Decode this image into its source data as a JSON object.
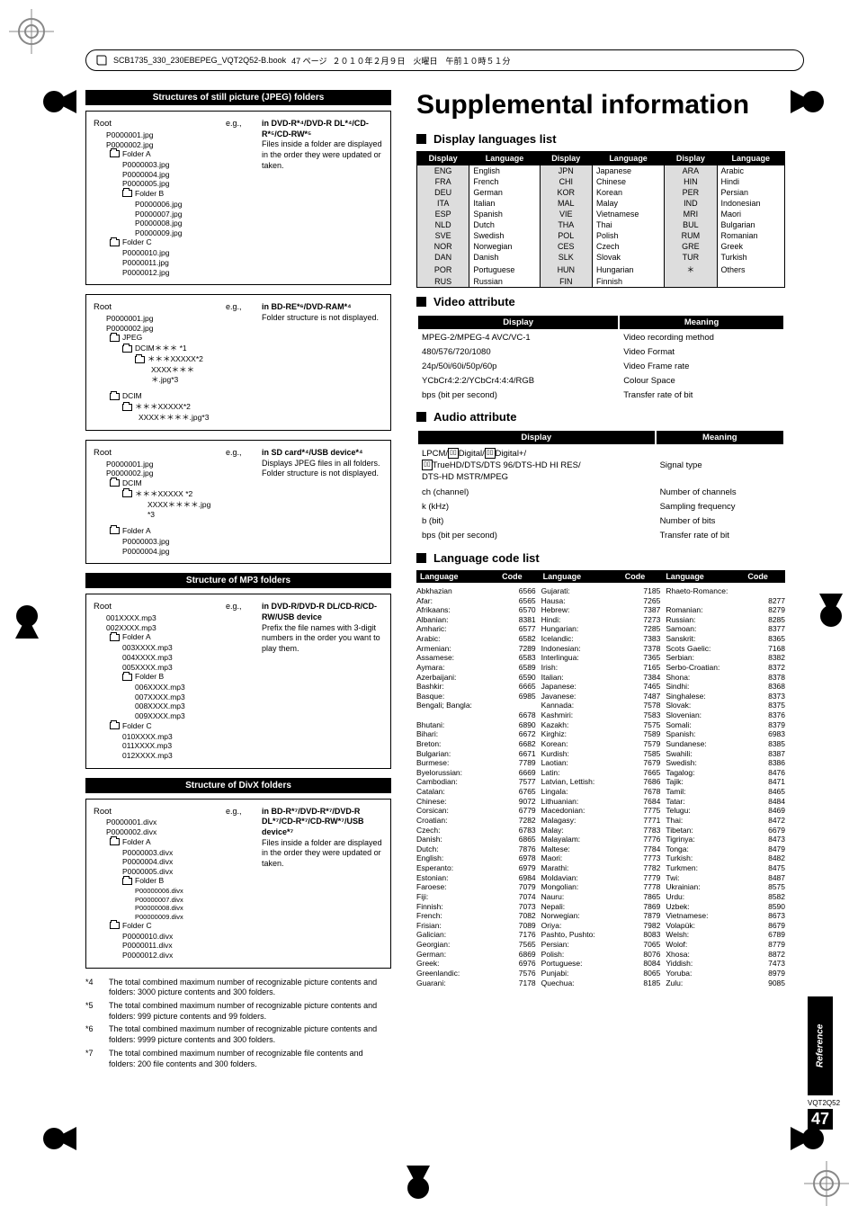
{
  "doc_header": {
    "filename": "SCB1735_330_230EBEPEG_VQT2Q52-B.book",
    "page_label": "47 ページ",
    "date": "２０１０年２月９日　火曜日　午前１０時５１分"
  },
  "left": {
    "jpeg_title": "Structures of still picture (JPEG) folders",
    "panel1": {
      "root": "Root",
      "eg": "e.g.,",
      "files1": [
        "P0000001.jpg",
        "P0000002.jpg"
      ],
      "folderA": "Folder A",
      "filesA": [
        "P0000003.jpg",
        "P0000004.jpg",
        "P0000005.jpg"
      ],
      "folderB": "Folder B",
      "filesB": [
        "P0000006.jpg",
        "P0000007.jpg",
        "P0000008.jpg",
        "P0000009.jpg"
      ],
      "folderC": "Folder C",
      "filesC": [
        "P0000010.jpg",
        "P0000011.jpg",
        "P0000012.jpg"
      ],
      "note_title": "in DVD-R*⁴/DVD-R DL*⁴/CD-R*⁵/CD-RW*⁵",
      "note_body": "Files inside a folder are displayed in the order they were updated or taken."
    },
    "panel2": {
      "root": "Root",
      "eg": "e.g.,",
      "files1": [
        "P0000001.jpg",
        "P0000002.jpg"
      ],
      "jpeg": "JPEG",
      "dcim_line": "DCIM＊＊＊ *1",
      "xxxxx_line": "＊＊＊XXXXX*2",
      "xxxx_line": "XXXX＊＊＊＊.jpg*3",
      "dcim": "DCIM",
      "note_title": "in BD-RE*⁶/DVD-RAM*⁴",
      "note_body": "Folder structure is not displayed."
    },
    "panel3": {
      "root": "Root",
      "eg": "e.g.,",
      "files1": [
        "P0000001.jpg",
        "P0000002.jpg"
      ],
      "dcim": "DCIM",
      "xxxxx_line": "＊＊＊XXXXX   *2",
      "xxxx_line": "XXXX＊＊＊＊.jpg    *3",
      "folderA": "Folder A",
      "filesA": [
        "P0000003.jpg",
        "P0000004.jpg"
      ],
      "note_title": "in SD card*⁴/USB device*⁴",
      "note_body": "Displays JPEG files in all folders.\nFolder structure is not displayed."
    },
    "mp3_title": "Structure of MP3 folders",
    "panel4": {
      "root": "Root",
      "eg": "e.g.,",
      "files1": [
        "001XXXX.mp3",
        "002XXXX.mp3"
      ],
      "folderA": "Folder A",
      "filesA": [
        "003XXXX.mp3",
        "004XXXX.mp3",
        "005XXXX.mp3"
      ],
      "folderB": "Folder B",
      "filesB": [
        "006XXXX.mp3",
        "007XXXX.mp3",
        "008XXXX.mp3",
        "009XXXX.mp3"
      ],
      "folderC": "Folder C",
      "filesC": [
        "010XXXX.mp3",
        "011XXXX.mp3",
        "012XXXX.mp3"
      ],
      "note_title": "in DVD-R/DVD-R DL/CD-R/CD-RW/USB device",
      "note_body": "Prefix the file names with 3-digit numbers in the order you want to play them."
    },
    "divx_title": "Structure of DivX folders",
    "panel5": {
      "root": "Root",
      "eg": "e.g.,",
      "files1": [
        "P0000001.divx",
        "P0000002.divx"
      ],
      "folderA": "Folder A",
      "filesA": [
        "P0000003.divx",
        "P0000004.divx",
        "P0000005.divx"
      ],
      "folderB": "Folder B",
      "filesB": [
        "P00000006.divx",
        "P00000007.divx",
        "P00000008.divx",
        "P00000009.divx"
      ],
      "folderC": "Folder C",
      "filesC": [
        "P0000010.divx",
        "P0000011.divx",
        "P0000012.divx"
      ],
      "note_title": "in BD-R*⁷/DVD-R*⁷/DVD-R DL*⁷/CD-R*⁷/CD-RW*⁷/USB device*⁷",
      "note_body": "Files inside a folder are displayed in the order they were updated or taken."
    },
    "footnotes": [
      [
        "*4",
        "The total combined maximum number of recognizable picture contents and folders: 3000 picture contents and 300 folders."
      ],
      [
        "*5",
        "The total combined maximum number of recognizable picture contents and folders: 999 picture contents and 99 folders."
      ],
      [
        "*6",
        "The total combined maximum number of recognizable picture contents and folders: 9999 picture contents and 300 folders."
      ],
      [
        "*7",
        "The total combined maximum number of recognizable file contents and folders: 200 file contents and 300 folders."
      ]
    ]
  },
  "right": {
    "title": "Supplemental information",
    "sec_display_lang": "Display languages list",
    "lang_headers": [
      "Display",
      "Language",
      "Display",
      "Language",
      "Display",
      "Language"
    ],
    "lang_rows": [
      [
        "ENG",
        "English",
        "JPN",
        "Japanese",
        "ARA",
        "Arabic"
      ],
      [
        "FRA",
        "French",
        "CHI",
        "Chinese",
        "HIN",
        "Hindi"
      ],
      [
        "DEU",
        "German",
        "KOR",
        "Korean",
        "PER",
        "Persian"
      ],
      [
        "ITA",
        "Italian",
        "MAL",
        "Malay",
        "IND",
        "Indonesian"
      ],
      [
        "ESP",
        "Spanish",
        "VIE",
        "Vietnamese",
        "MRI",
        "Maori"
      ],
      [
        "NLD",
        "Dutch",
        "THA",
        "Thai",
        "BUL",
        "Bulgarian"
      ],
      [
        "SVE",
        "Swedish",
        "POL",
        "Polish",
        "RUM",
        "Romanian"
      ],
      [
        "NOR",
        "Norwegian",
        "CES",
        "Czech",
        "GRE",
        "Greek"
      ],
      [
        "DAN",
        "Danish",
        "SLK",
        "Slovak",
        "TUR",
        "Turkish"
      ],
      [
        "POR",
        "Portuguese",
        "HUN",
        "Hungarian",
        "＊",
        "Others"
      ],
      [
        "RUS",
        "Russian",
        "FIN",
        "Finnish",
        "",
        ""
      ]
    ],
    "sec_video": "Video attribute",
    "video_headers": [
      "Display",
      "Meaning"
    ],
    "video_rows": [
      [
        "MPEG-2/MPEG-4 AVC/VC-1",
        "Video recording method"
      ],
      [
        "480/576/720/1080",
        "Video Format"
      ],
      [
        "24p/50i/60i/50p/60p",
        "Video Frame rate"
      ],
      [
        "YCbCr4:2:2/YCbCr4:4:4/RGB",
        "Colour Space"
      ],
      [
        "bps (bit per second)",
        "Transfer rate of bit"
      ]
    ],
    "sec_audio": "Audio attribute",
    "audio_headers": [
      "Display",
      "Meaning"
    ],
    "audio_row1_left": "LPCM/▯▯Digital/▯▯Digital+/▯▯TrueHD/DTS/DTS 96/DTS-HD HI RES/DTS-HD MSTR/MPEG",
    "audio_row1_right": "Signal type",
    "audio_rows": [
      [
        "ch (channel)",
        "Number of channels"
      ],
      [
        "k (kHz)",
        "Sampling frequency"
      ],
      [
        "b (bit)",
        "Number of bits"
      ],
      [
        "bps (bit per second)",
        "Transfer rate of bit"
      ]
    ],
    "sec_langcode": "Language code list",
    "langcode_headers": [
      "Language",
      "Code",
      "Language",
      "Code",
      "Language",
      "Code"
    ],
    "lc_col1": [
      [
        "Abkhazian",
        "6566"
      ],
      [
        "Afar:",
        "6565"
      ],
      [
        "Afrikaans:",
        "6570"
      ],
      [
        "Albanian:",
        "8381"
      ],
      [
        "Amharic:",
        "6577"
      ],
      [
        "Arabic:",
        "6582"
      ],
      [
        "Armenian:",
        "7289"
      ],
      [
        "Assamese:",
        "6583"
      ],
      [
        "Aymara:",
        "6589"
      ],
      [
        "Azerbaijani:",
        "6590"
      ],
      [
        "Bashkir:",
        "6665"
      ],
      [
        "Basque:",
        "6985"
      ],
      [
        "Bengali; Bangla:",
        ""
      ],
      [
        "",
        "6678"
      ],
      [
        "Bhutani:",
        "6890"
      ],
      [
        "Bihari:",
        "6672"
      ],
      [
        "Breton:",
        "6682"
      ],
      [
        "Bulgarian:",
        "6671"
      ],
      [
        "Burmese:",
        "7789"
      ],
      [
        "Byelorussian:",
        "6669"
      ],
      [
        "Cambodian:",
        "7577"
      ],
      [
        "Catalan:",
        "6765"
      ],
      [
        "Chinese:",
        "9072"
      ],
      [
        "Corsican:",
        "6779"
      ],
      [
        "Croatian:",
        "7282"
      ],
      [
        "Czech:",
        "6783"
      ],
      [
        "Danish:",
        "6865"
      ],
      [
        "Dutch:",
        "7876"
      ],
      [
        "English:",
        "6978"
      ],
      [
        "Esperanto:",
        "6979"
      ],
      [
        "Estonian:",
        "6984"
      ],
      [
        "Faroese:",
        "7079"
      ],
      [
        "Fiji:",
        "7074"
      ],
      [
        "Finnish:",
        "7073"
      ],
      [
        "French:",
        "7082"
      ],
      [
        "Frisian:",
        "7089"
      ],
      [
        "Galician:",
        "7176"
      ],
      [
        "Georgian:",
        "7565"
      ],
      [
        "German:",
        "6869"
      ],
      [
        "Greek:",
        "6976"
      ],
      [
        "Greenlandic:",
        "7576"
      ],
      [
        "Guarani:",
        "7178"
      ]
    ],
    "lc_col2": [
      [
        "Gujarati:",
        "7185"
      ],
      [
        "Hausa:",
        "7265"
      ],
      [
        "Hebrew:",
        "7387"
      ],
      [
        "Hindi:",
        "7273"
      ],
      [
        "Hungarian:",
        "7285"
      ],
      [
        "Icelandic:",
        "7383"
      ],
      [
        "Indonesian:",
        "7378"
      ],
      [
        "Interlingua:",
        "7365"
      ],
      [
        "Irish:",
        "7165"
      ],
      [
        "Italian:",
        "7384"
      ],
      [
        "Japanese:",
        "7465"
      ],
      [
        "Javanese:",
        "7487"
      ],
      [
        "Kannada:",
        "7578"
      ],
      [
        "Kashmiri:",
        "7583"
      ],
      [
        "Kazakh:",
        "7575"
      ],
      [
        "Kirghiz:",
        "7589"
      ],
      [
        "Korean:",
        "7579"
      ],
      [
        "Kurdish:",
        "7585"
      ],
      [
        "Laotian:",
        "7679"
      ],
      [
        "Latin:",
        "7665"
      ],
      [
        "Latvian, Lettish:",
        "7686"
      ],
      [
        "Lingala:",
        "7678"
      ],
      [
        "Lithuanian:",
        "7684"
      ],
      [
        "Macedonian:",
        "7775"
      ],
      [
        "Malagasy:",
        "7771"
      ],
      [
        "Malay:",
        "7783"
      ],
      [
        "Malayalam:",
        "7776"
      ],
      [
        "Maltese:",
        "7784"
      ],
      [
        "Maori:",
        "7773"
      ],
      [
        "Marathi:",
        "7782"
      ],
      [
        "Moldavian:",
        "7779"
      ],
      [
        "Mongolian:",
        "7778"
      ],
      [
        "Nauru:",
        "7865"
      ],
      [
        "Nepali:",
        "7869"
      ],
      [
        "Norwegian:",
        "7879"
      ],
      [
        "Oriya:",
        "7982"
      ],
      [
        "Pashto, Pushto:",
        "8083"
      ],
      [
        "Persian:",
        "7065"
      ],
      [
        "Polish:",
        "8076"
      ],
      [
        "Portuguese:",
        "8084"
      ],
      [
        "Punjabi:",
        "8065"
      ],
      [
        "Quechua:",
        "8185"
      ]
    ],
    "lc_col3": [
      [
        "Rhaeto-Romance:",
        ""
      ],
      [
        "",
        "8277"
      ],
      [
        "Romanian:",
        "8279"
      ],
      [
        "Russian:",
        "8285"
      ],
      [
        "Samoan:",
        "8377"
      ],
      [
        "Sanskrit:",
        "8365"
      ],
      [
        "Scots Gaelic:",
        "7168"
      ],
      [
        "Serbian:",
        "8382"
      ],
      [
        "Serbo-Croatian:",
        "8372"
      ],
      [
        "Shona:",
        "8378"
      ],
      [
        "Sindhi:",
        "8368"
      ],
      [
        "Singhalese:",
        "8373"
      ],
      [
        "Slovak:",
        "8375"
      ],
      [
        "Slovenian:",
        "8376"
      ],
      [
        "Somali:",
        "8379"
      ],
      [
        "Spanish:",
        "6983"
      ],
      [
        "Sundanese:",
        "8385"
      ],
      [
        "Swahili:",
        "8387"
      ],
      [
        "Swedish:",
        "8386"
      ],
      [
        "Tagalog:",
        "8476"
      ],
      [
        "Tajik:",
        "8471"
      ],
      [
        "Tamil:",
        "8465"
      ],
      [
        "Tatar:",
        "8484"
      ],
      [
        "Telugu:",
        "8469"
      ],
      [
        "Thai:",
        "8472"
      ],
      [
        "Tibetan:",
        "6679"
      ],
      [
        "Tigrinya:",
        "8473"
      ],
      [
        "Tonga:",
        "8479"
      ],
      [
        "Turkish:",
        "8482"
      ],
      [
        "Turkmen:",
        "8475"
      ],
      [
        "Twi:",
        "8487"
      ],
      [
        "Ukrainian:",
        "8575"
      ],
      [
        "Urdu:",
        "8582"
      ],
      [
        "Uzbek:",
        "8590"
      ],
      [
        "Vietnamese:",
        "8673"
      ],
      [
        "Volapük:",
        "8679"
      ],
      [
        "Welsh:",
        "6789"
      ],
      [
        "Wolof:",
        "8779"
      ],
      [
        "Xhosa:",
        "8872"
      ],
      [
        "Yiddish:",
        "7473"
      ],
      [
        "Yoruba:",
        "8979"
      ],
      [
        "Zulu:",
        "9085"
      ]
    ]
  },
  "side_tab": "Reference",
  "page_code": "VQT2Q52",
  "page_num": "47"
}
